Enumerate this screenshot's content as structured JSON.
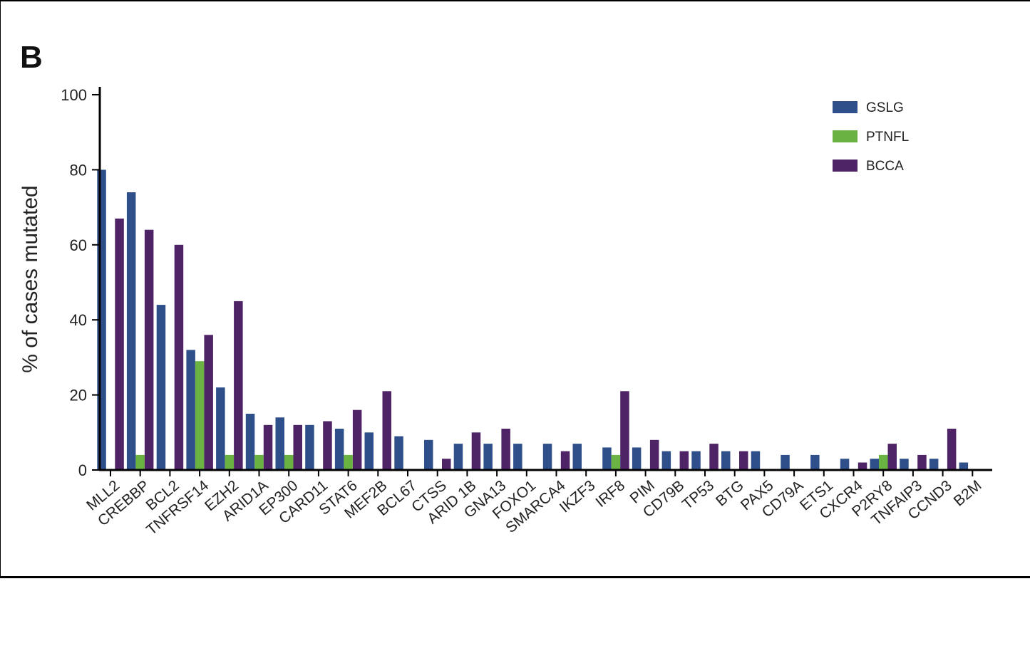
{
  "panel_label": "B",
  "chart_data": {
    "type": "bar",
    "ylabel": "% of cases mutated",
    "xlabel": "",
    "ylim": [
      0,
      100
    ],
    "yticks": [
      "0",
      "20",
      "40",
      "60",
      "80",
      "100"
    ],
    "legend_position": "top-right",
    "categories": [
      "MLL2",
      "CREBBP",
      "BCL2",
      "TNFRSF14",
      "EZH2",
      "ARID1A",
      "EP300",
      "CARD11",
      "STAT6",
      "MEF2B",
      "BCL67",
      "CTSS",
      "ARID 1B",
      "GNA13",
      "FOXO1",
      "SMARCA4",
      "IKZF3",
      "IRF8",
      "PIM",
      "CD79B",
      "TP53",
      "BTG",
      "PAX5",
      "CD79A",
      "ETS1",
      "CXCR4",
      "P2RY8",
      "TNFAIP3",
      "CCND3",
      "B2M"
    ],
    "series": [
      {
        "name": "GSLG",
        "color": "#2f4f8a",
        "values": [
          80,
          74,
          44,
          32,
          22,
          15,
          14,
          12,
          11,
          10,
          9,
          8,
          7,
          7,
          7,
          7,
          7,
          6,
          6,
          5,
          5,
          5,
          5,
          4,
          4,
          3,
          3,
          3,
          3,
          2
        ]
      },
      {
        "name": "PTNFL",
        "color": "#6ab343",
        "values": [
          0,
          4,
          0,
          29,
          4,
          4,
          4,
          0,
          4,
          0,
          0,
          0,
          0,
          0,
          0,
          0,
          0,
          4,
          0,
          0,
          0,
          0,
          0,
          0,
          0,
          0,
          4,
          0,
          0,
          0
        ]
      },
      {
        "name": "BCCA",
        "color": "#4f2466",
        "values": [
          67,
          64,
          60,
          36,
          45,
          12,
          12,
          13,
          16,
          21,
          0,
          3,
          10,
          11,
          0,
          5,
          0,
          21,
          8,
          5,
          7,
          5,
          0,
          0,
          0,
          2,
          7,
          4,
          11,
          0
        ]
      }
    ]
  }
}
